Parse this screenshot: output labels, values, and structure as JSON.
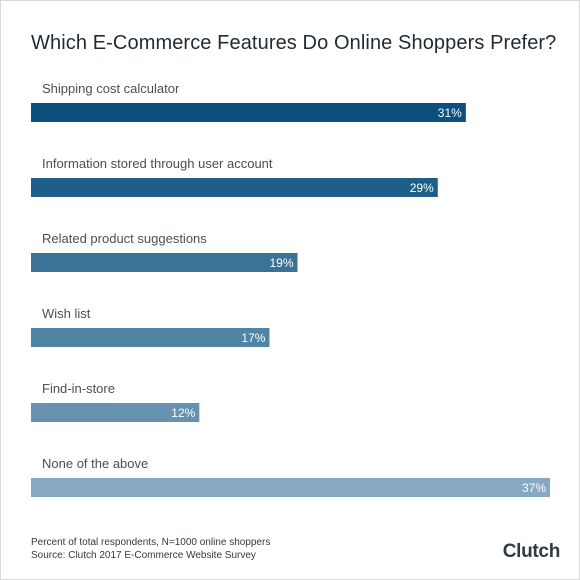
{
  "chart_data": {
    "type": "bar",
    "orientation": "horizontal",
    "title": "Which E-Commerce Features Do Online Shoppers Prefer?",
    "categories": [
      "Shipping cost calculator",
      "Information stored through user account",
      "Related product suggestions",
      "Wish list",
      "Find-in-store",
      "None of the above"
    ],
    "values": [
      31,
      29,
      19,
      17,
      12,
      37
    ],
    "value_labels": [
      "31%",
      "29%",
      "19%",
      "17%",
      "12%",
      "37%"
    ],
    "bar_colors": [
      "#0b4f7c",
      "#1d5f88",
      "#3b7396",
      "#5084a4",
      "#6791b0",
      "#86a8c1"
    ],
    "xlim": [
      0,
      37
    ],
    "grid": false,
    "legend": "none"
  },
  "footnotes": {
    "line1": "Percent of total respondents, N=1000 online shoppers",
    "line2": "Source: Clutch 2017 E-Commerce Website Survey"
  },
  "logo": "Clutch"
}
